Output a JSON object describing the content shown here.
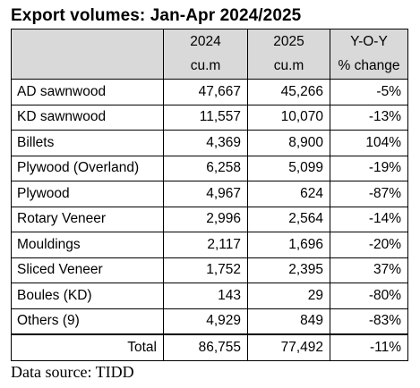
{
  "title": "Export volumes: Jan-Apr 2024/2025",
  "header": {
    "row1": [
      "",
      "2024",
      "2025",
      "Y-O-Y"
    ],
    "row2": [
      "",
      "cu.m",
      "cu.m",
      "% change"
    ]
  },
  "rows": [
    {
      "product": "AD sawnwood",
      "v2024": "47,667",
      "v2025": "45,266",
      "yoy": "-5%"
    },
    {
      "product": "KD sawnwood",
      "v2024": "11,557",
      "v2025": "10,070",
      "yoy": "-13%"
    },
    {
      "product": "Billets",
      "v2024": "4,369",
      "v2025": "8,900",
      "yoy": "104%"
    },
    {
      "product": "Plywood (Overland)",
      "v2024": "6,258",
      "v2025": "5,099",
      "yoy": "-19%"
    },
    {
      "product": "Plywood",
      "v2024": "4,967",
      "v2025": "624",
      "yoy": "-87%"
    },
    {
      "product": "Rotary Veneer",
      "v2024": "2,996",
      "v2025": "2,564",
      "yoy": "-14%"
    },
    {
      "product": "Mouldings",
      "v2024": "2,117",
      "v2025": "1,696",
      "yoy": "-20%"
    },
    {
      "product": "Sliced Veneer",
      "v2024": "1,752",
      "v2025": "2,395",
      "yoy": "37%"
    },
    {
      "product": "Boules (KD)",
      "v2024": "143",
      "v2025": "29",
      "yoy": "-80%"
    },
    {
      "product": "Others (9)",
      "v2024": "4,929",
      "v2025": "849",
      "yoy": "-83%"
    }
  ],
  "total": {
    "label": "Total",
    "v2024": "86,755",
    "v2025": "77,492",
    "yoy": "-11%"
  },
  "source": "Data source: TIDD",
  "colors": {
    "header_bg": "#d9d9d9",
    "border": "#000000",
    "text": "#000000"
  }
}
